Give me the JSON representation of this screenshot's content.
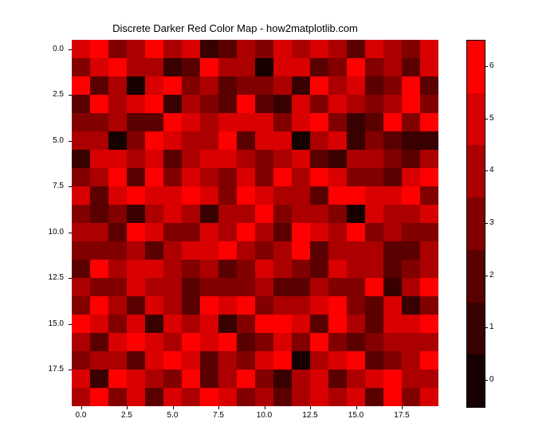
{
  "chart": {
    "type": "heatmap",
    "title": "Discrete Darker Red Color Map - how2matplotlib.com",
    "title_fontsize": 13,
    "background_color": "#ffffff",
    "text_color": "#000000",
    "grid_size": 20,
    "xlim": [
      -0.5,
      19.5
    ],
    "ylim": [
      -0.5,
      19.5
    ],
    "xtick_positions": [
      0.0,
      2.5,
      5.0,
      7.5,
      10.0,
      12.5,
      15.0,
      17.5
    ],
    "xtick_labels": [
      "0.0",
      "2.5",
      "5.0",
      "7.5",
      "10.0",
      "12.5",
      "15.0",
      "17.5"
    ],
    "ytick_positions": [
      0.0,
      2.5,
      5.0,
      7.5,
      10.0,
      12.5,
      15.0,
      17.5
    ],
    "ytick_labels": [
      "0.0",
      "2.5",
      "5.0",
      "7.5",
      "10.0",
      "12.5",
      "15.0",
      "17.5"
    ],
    "tick_fontsize": 10,
    "colorbar": {
      "vmin": -0.5,
      "vmax": 6.5,
      "tick_positions": [
        0,
        1,
        2,
        3,
        4,
        5,
        6
      ],
      "tick_labels": [
        "0",
        "1",
        "2",
        "3",
        "4",
        "5",
        "6"
      ],
      "n_colors": 7,
      "colors": [
        "#160000",
        "#380000",
        "#5a0000",
        "#820000",
        "#ac0000",
        "#d80000",
        "#ff0000"
      ]
    },
    "values": [
      [
        5,
        6,
        3,
        4,
        6,
        4,
        5,
        1,
        2,
        4,
        3,
        5,
        4,
        5,
        4,
        2,
        5,
        4,
        3,
        5
      ],
      [
        3,
        5,
        6,
        4,
        4,
        1,
        2,
        6,
        4,
        4,
        0,
        5,
        5,
        2,
        3,
        6,
        3,
        4,
        2,
        5
      ],
      [
        6,
        2,
        4,
        0,
        5,
        6,
        3,
        4,
        2,
        3,
        3,
        4,
        1,
        6,
        4,
        5,
        2,
        3,
        6,
        2
      ],
      [
        2,
        6,
        4,
        5,
        6,
        1,
        4,
        3,
        2,
        6,
        2,
        1,
        5,
        3,
        5,
        4,
        3,
        4,
        6,
        3
      ],
      [
        3,
        3,
        4,
        2,
        2,
        6,
        5,
        4,
        5,
        5,
        5,
        3,
        5,
        6,
        3,
        1,
        2,
        6,
        3,
        6
      ],
      [
        4,
        4,
        0,
        3,
        6,
        5,
        4,
        4,
        6,
        2,
        5,
        5,
        0,
        4,
        5,
        1,
        3,
        2,
        1,
        1
      ],
      [
        1,
        5,
        5,
        4,
        5,
        2,
        4,
        5,
        5,
        4,
        3,
        4,
        5,
        2,
        1,
        4,
        4,
        3,
        2,
        4
      ],
      [
        3,
        4,
        6,
        2,
        6,
        3,
        5,
        4,
        3,
        5,
        3,
        6,
        4,
        6,
        5,
        3,
        3,
        2,
        5,
        6
      ],
      [
        5,
        2,
        5,
        6,
        5,
        5,
        6,
        5,
        3,
        6,
        5,
        4,
        4,
        2,
        6,
        6,
        5,
        5,
        6,
        3
      ],
      [
        3,
        2,
        3,
        1,
        4,
        5,
        4,
        1,
        4,
        4,
        6,
        3,
        4,
        4,
        3,
        0,
        5,
        4,
        4,
        5
      ],
      [
        4,
        4,
        2,
        6,
        5,
        3,
        3,
        5,
        4,
        6,
        4,
        2,
        6,
        5,
        4,
        6,
        3,
        4,
        3,
        3
      ],
      [
        3,
        3,
        3,
        4,
        2,
        4,
        5,
        5,
        6,
        4,
        3,
        4,
        6,
        2,
        4,
        4,
        4,
        2,
        2,
        4
      ],
      [
        2,
        6,
        4,
        5,
        5,
        4,
        3,
        4,
        2,
        3,
        5,
        4,
        3,
        2,
        5,
        4,
        4,
        2,
        3,
        4
      ],
      [
        4,
        3,
        3,
        5,
        4,
        4,
        2,
        3,
        3,
        3,
        4,
        2,
        2,
        4,
        3,
        3,
        6,
        1,
        4,
        6
      ],
      [
        3,
        6,
        4,
        2,
        5,
        4,
        2,
        6,
        5,
        6,
        3,
        4,
        4,
        5,
        6,
        3,
        2,
        5,
        1,
        3
      ],
      [
        6,
        5,
        3,
        5,
        1,
        5,
        4,
        5,
        1,
        3,
        6,
        6,
        5,
        2,
        6,
        4,
        2,
        5,
        5,
        6
      ],
      [
        4,
        2,
        5,
        6,
        5,
        4,
        6,
        5,
        6,
        2,
        3,
        5,
        3,
        6,
        3,
        2,
        3,
        4,
        4,
        4
      ],
      [
        3,
        4,
        4,
        2,
        5,
        6,
        5,
        2,
        4,
        3,
        5,
        6,
        0,
        4,
        5,
        6,
        2,
        3,
        4,
        6
      ],
      [
        5,
        1,
        6,
        5,
        4,
        3,
        6,
        2,
        4,
        6,
        3,
        1,
        4,
        5,
        2,
        4,
        5,
        6,
        4,
        4
      ],
      [
        4,
        6,
        3,
        5,
        2,
        5,
        4,
        6,
        5,
        3,
        4,
        2,
        4,
        5,
        4,
        5,
        2,
        6,
        3,
        5
      ]
    ]
  }
}
